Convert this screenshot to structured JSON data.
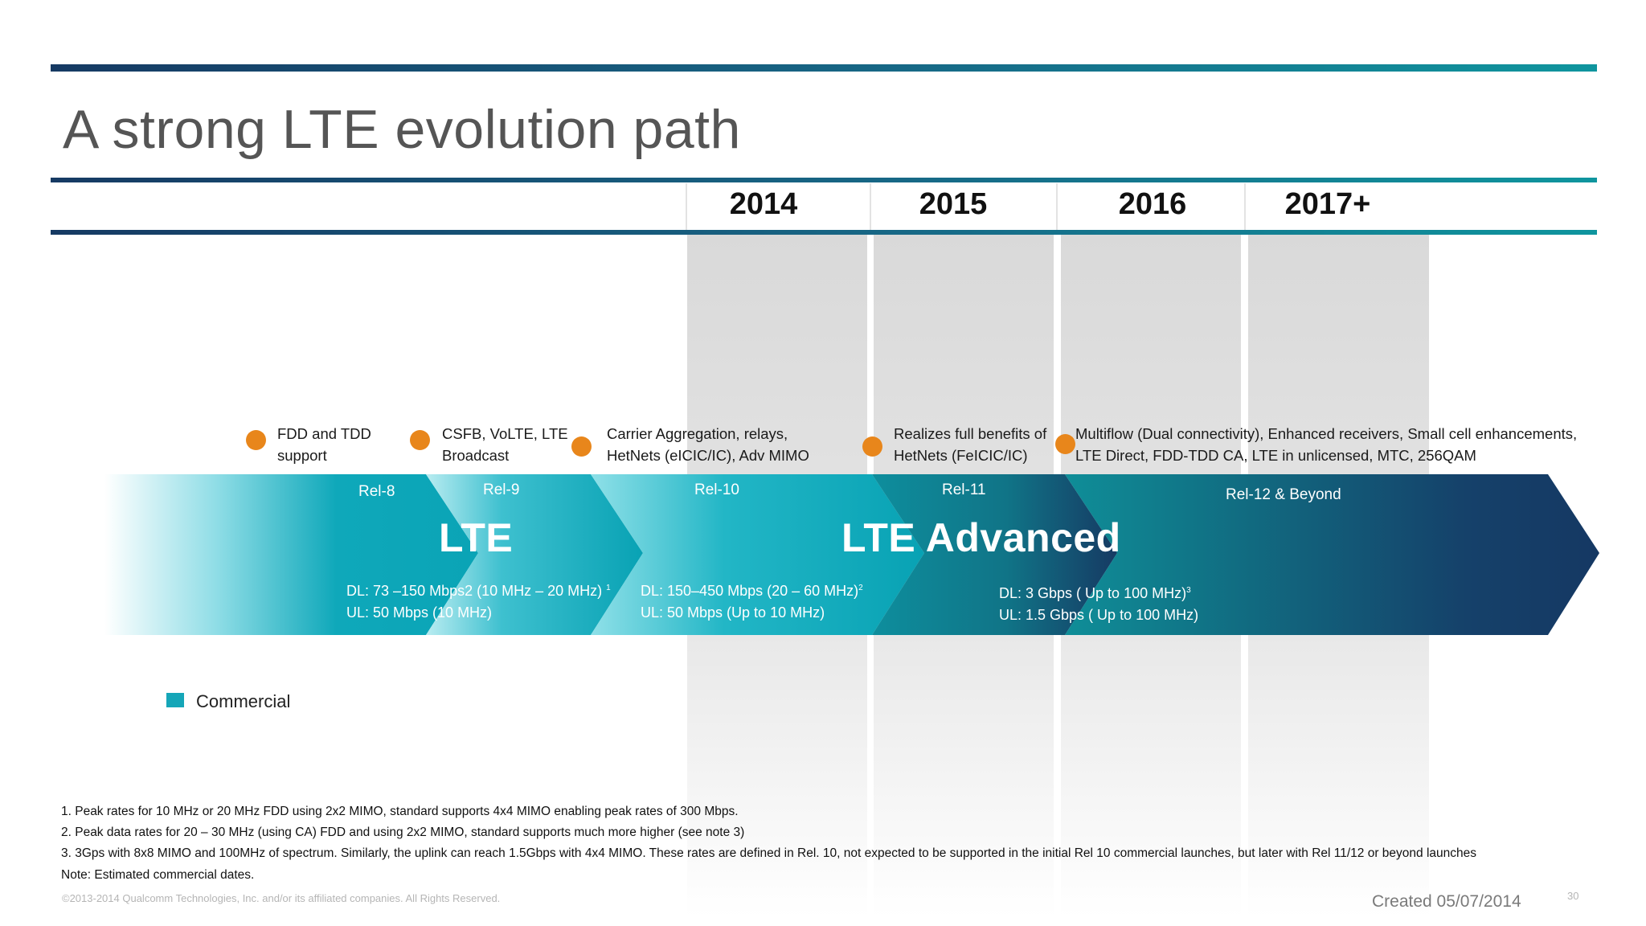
{
  "title": "A strong LTE evolution path",
  "years": [
    "2014",
    "2015",
    "2016",
    "2017+"
  ],
  "milestones": [
    {
      "line1": "FDD and TDD",
      "line2": "support"
    },
    {
      "line1": "CSFB, VoLTE, LTE",
      "line2": "Broadcast"
    },
    {
      "line1": "Carrier Aggregation, relays,",
      "line2": "HetNets (eICIC/IC), Adv MIMO"
    },
    {
      "line1": "Realizes full benefits of",
      "line2": "HetNets (FeICIC/IC)"
    },
    {
      "line1": "Multiflow (Dual connectivity), Enhanced receivers, Small cell enhancements,",
      "line2": "LTE Direct, FDD-TDD CA, LTE in unlicensed, MTC, 256QAM"
    }
  ],
  "releases": [
    "Rel-8",
    "Rel-9",
    "Rel-10",
    "Rel-11",
    "Rel-12 & Beyond"
  ],
  "phases": {
    "lte": "LTE",
    "lte_advanced": "LTE Advanced"
  },
  "rates": {
    "lte": {
      "dl": "DL: 73 –150 Mbps2 (10 MHz – 20 MHz)",
      "dl_sup": "1",
      "ul": "UL:  50 Mbps   (10 MHz)"
    },
    "rel10": {
      "dl": "DL: 150–450 Mbps (20 – 60 MHz)",
      "dl_sup": "2",
      "ul": "UL: 50 Mbps (Up to 10 MHz)"
    },
    "rel12": {
      "dl": "DL:  3 Gbps ( Up to 100 MHz)",
      "dl_sup": "3",
      "ul": "UL: 1.5 Gbps ( Up to 100 MHz)"
    }
  },
  "legend": {
    "label": "Commercial",
    "color": "#15a6b8"
  },
  "footnotes": [
    "1. Peak rates for 10  MHz or 20 MHz FDD using 2x2 MIMO, standard supports 4x4 MIMO enabling peak rates of 300 Mbps.",
    "2. Peak data rates for 20 – 30 MHz (using CA) FDD and using 2x2 MIMO,  standard supports much more higher (see note 3)",
    "3. 3Gps with 8x8 MIMO and 100MHz of spectrum. Similarly, the uplink can reach 1.5Gbps with 4x4 MIMO. These rates are defined in Rel. 10, not expected to be  supported in the initial Rel 10 commercial launches, but later with Rel 11/12 or beyond launches",
    "Note: Estimated commercial dates."
  ],
  "copyright": "©2013-2014 Qualcomm Technologies, Inc. and/or its affiliated companies. All Rights Reserved.",
  "created": "Created 05/07/2014",
  "page_number": "30",
  "colors": {
    "milestone": "#e8861b",
    "teal": "#0ea5b7",
    "navy": "#153863",
    "rule": "#163a63"
  }
}
